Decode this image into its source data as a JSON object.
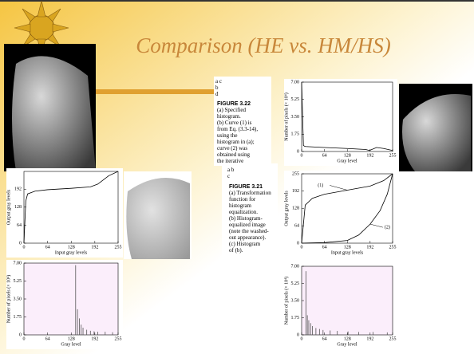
{
  "title": "Comparison (HE vs. HM/HS)",
  "figure_322": {
    "panel_labels": [
      "a c",
      "b",
      "d"
    ],
    "caption_title": "FIGURE 3.22",
    "caption_lines": [
      "(a) Specified",
      "histogram.",
      "(b) Curve (1) is",
      "from Eq. (3.3-14),",
      "using the",
      "histogram in (a);",
      "curve (2) was",
      "obtained using",
      "the iterative"
    ]
  },
  "figure_321": {
    "panel_labels": [
      "a b",
      "c"
    ],
    "caption_title": "FIGURE 3.21",
    "caption_lines": [
      "(a) Transformation",
      "function for",
      "histogram",
      "equalization.",
      "(b) Histogram-",
      "equalized image",
      "(note the washed-",
      "out appearance).",
      "(c) Histogram",
      "of (b)."
    ]
  },
  "plots": [
    {
      "x_label": "Input gray levels",
      "y_label": "Output gray levels",
      "xlim": [
        0,
        255
      ],
      "ylim": [
        0,
        255
      ],
      "xticks": [
        0,
        64,
        128,
        192,
        255
      ],
      "yticks": [
        0,
        64,
        128,
        192
      ],
      "lines": [
        {
          "x": [
            0,
            5,
            10,
            30,
            64,
            128,
            180,
            200,
            230,
            255
          ],
          "y": [
            0,
            150,
            175,
            185,
            190,
            195,
            200,
            210,
            240,
            255
          ]
        }
      ]
    },
    {
      "x_label": "Gray level",
      "y_label": "Number of pixels (× 10⁴)",
      "xlim": [
        0,
        255
      ],
      "ylim": [
        0,
        7
      ],
      "xticks": [
        0,
        64,
        128,
        192,
        255
      ],
      "yticks": [
        0,
        {
          "value": 1.75,
          "label": "1.75"
        },
        {
          "value": 3.5,
          "label": "3.50"
        },
        {
          "value": 5.25,
          "label": "5.25"
        },
        {
          "value": 7,
          "label": "7.00"
        }
      ],
      "bars": {
        "x": [
          140,
          145,
          150,
          155,
          160,
          170,
          180,
          190,
          200,
          220,
          240
        ],
        "values": [
          6.8,
          2.5,
          1.6,
          1.0,
          0.7,
          0.5,
          0.4,
          0.35,
          0.3,
          0.3,
          0.25
        ]
      }
    },
    {
      "x_label": "Gray level",
      "y_label": "Number of pixels (× 10⁴)",
      "xlim": [
        0,
        255
      ],
      "ylim": [
        0,
        7
      ],
      "xticks": [
        0,
        64,
        128,
        192,
        255
      ],
      "yticks": [
        0,
        {
          "value": 1.75,
          "label": "1.75"
        },
        {
          "value": 3.5,
          "label": "3.50"
        },
        {
          "value": 5.25,
          "label": "5.25"
        },
        {
          "value": 7,
          "label": "7.00"
        }
      ],
      "lines": [
        {
          "x": [
            0,
            5,
            10,
            64,
            128,
            180,
            190,
            210,
            230,
            255
          ],
          "y": [
            7,
            0.6,
            0.5,
            0.4,
            0.3,
            0.2,
            0.1,
            0.4,
            0.3,
            0.1
          ]
        }
      ]
    },
    {
      "x_label": "Input gray levels",
      "y_label": "Output gray levels",
      "xlim": [
        0,
        255
      ],
      "ylim": [
        0,
        255
      ],
      "xticks": [
        0,
        64,
        128,
        192,
        255
      ],
      "yticks": [
        0,
        64,
        128,
        192,
        255
      ],
      "lines": [
        {
          "name": "(1)",
          "x": [
            0,
            10,
            30,
            64,
            128,
            192,
            230,
            255
          ],
          "y": [
            0,
            140,
            165,
            180,
            195,
            210,
            230,
            255
          ]
        },
        {
          "name": "(2)",
          "x": [
            0,
            64,
            128,
            160,
            192,
            220,
            240,
            255
          ],
          "y": [
            0,
            2,
            10,
            30,
            70,
            120,
            180,
            255
          ]
        }
      ]
    },
    {
      "x_label": "Gray level",
      "y_label": "Number of pixels (× 10⁴)",
      "xlim": [
        0,
        255
      ],
      "ylim": [
        0,
        7
      ],
      "xticks": [
        0,
        64,
        128,
        192,
        255
      ],
      "yticks": [
        0,
        {
          "value": 1.75,
          "label": "1.75"
        },
        {
          "value": 3.5,
          "label": "3.50"
        },
        {
          "value": 5.25,
          "label": "5.25"
        },
        {
          "value": 7,
          "label": "7.00"
        }
      ],
      "bars": {
        "x": [
          12,
          16,
          20,
          25,
          30,
          40,
          50,
          60,
          80,
          100,
          130,
          160,
          200,
          240
        ],
        "values": [
          6.5,
          2.0,
          1.5,
          1.2,
          0.9,
          0.7,
          0.6,
          0.5,
          0.45,
          0.4,
          0.35,
          0.3,
          0.3,
          0.25
        ]
      }
    }
  ]
}
